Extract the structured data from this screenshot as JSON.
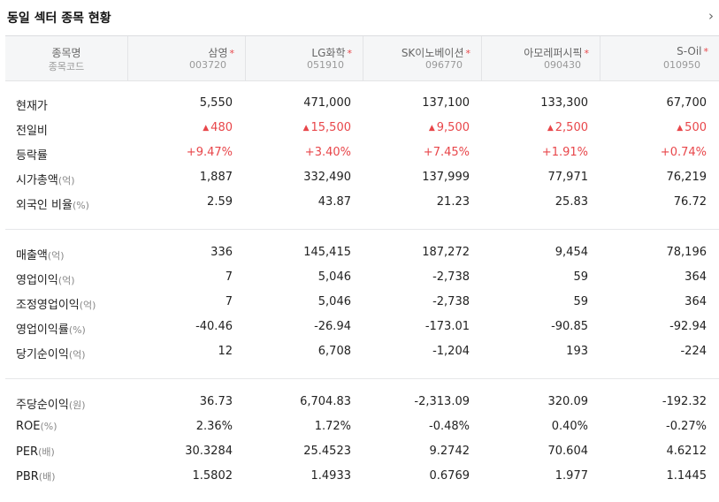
{
  "title": "동일 섹터 종목 현황",
  "more_icon": "chevron-right-icon",
  "header": {
    "name_label": "종목명",
    "code_label": "종목코드",
    "star": "*",
    "companies": [
      {
        "name": "삼영",
        "code": "003720"
      },
      {
        "name": "LG화학",
        "code": "051910"
      },
      {
        "name": "SK이노베이션",
        "code": "096770"
      },
      {
        "name": "아모레퍼시픽",
        "code": "090430"
      },
      {
        "name": "S-Oil",
        "code": "010950"
      }
    ]
  },
  "sections": [
    {
      "rows": [
        {
          "label": "현재가",
          "unit": "",
          "red": false,
          "values": [
            "5,550",
            "471,000",
            "137,100",
            "133,300",
            "67,700"
          ]
        },
        {
          "label": "전일비",
          "unit": "",
          "red": true,
          "arrow": "▲",
          "values": [
            "480",
            "15,500",
            "9,500",
            "2,500",
            "500"
          ]
        },
        {
          "label": "등락률",
          "unit": "",
          "red": true,
          "values": [
            "+9.47%",
            "+3.40%",
            "+7.45%",
            "+1.91%",
            "+0.74%"
          ]
        },
        {
          "label": "시가총액",
          "unit": "(억)",
          "red": false,
          "values": [
            "1,887",
            "332,490",
            "137,999",
            "77,971",
            "76,219"
          ]
        },
        {
          "label": "외국인 비율",
          "unit": "(%)",
          "red": false,
          "values": [
            "2.59",
            "43.87",
            "21.23",
            "25.83",
            "76.72"
          ]
        }
      ]
    },
    {
      "rows": [
        {
          "label": "매출액",
          "unit": "(억)",
          "red": false,
          "values": [
            "336",
            "145,415",
            "187,272",
            "9,454",
            "78,196"
          ]
        },
        {
          "label": "영업이익",
          "unit": "(억)",
          "red": false,
          "values": [
            "7",
            "5,046",
            "-2,738",
            "59",
            "364"
          ]
        },
        {
          "label": "조정영업이익",
          "unit": "(억)",
          "red": false,
          "values": [
            "7",
            "5,046",
            "-2,738",
            "59",
            "364"
          ]
        },
        {
          "label": "영업이익률",
          "unit": "(%)",
          "red": false,
          "values": [
            "-40.46",
            "-26.94",
            "-173.01",
            "-90.85",
            "-92.94"
          ]
        },
        {
          "label": "당기순이익",
          "unit": "(억)",
          "red": false,
          "values": [
            "12",
            "6,708",
            "-1,204",
            "193",
            "-224"
          ]
        }
      ]
    },
    {
      "rows": [
        {
          "label": "주당순이익",
          "unit": "(원)",
          "red": false,
          "values": [
            "36.73",
            "6,704.83",
            "-2,313.09",
            "320.09",
            "-192.32"
          ]
        },
        {
          "label": "ROE",
          "unit": "(%)",
          "red": false,
          "values": [
            "2.36%",
            "1.72%",
            "-0.48%",
            "0.40%",
            "-0.27%"
          ]
        },
        {
          "label": "PER",
          "unit": "(배)",
          "red": false,
          "values": [
            "30.3284",
            "25.4523",
            "9.2742",
            "70.604",
            "4.6212"
          ]
        },
        {
          "label": "PBR",
          "unit": "(배)",
          "red": false,
          "values": [
            "1.5802",
            "1.4933",
            "0.6769",
            "1.977",
            "1.1445"
          ]
        }
      ]
    }
  ]
}
